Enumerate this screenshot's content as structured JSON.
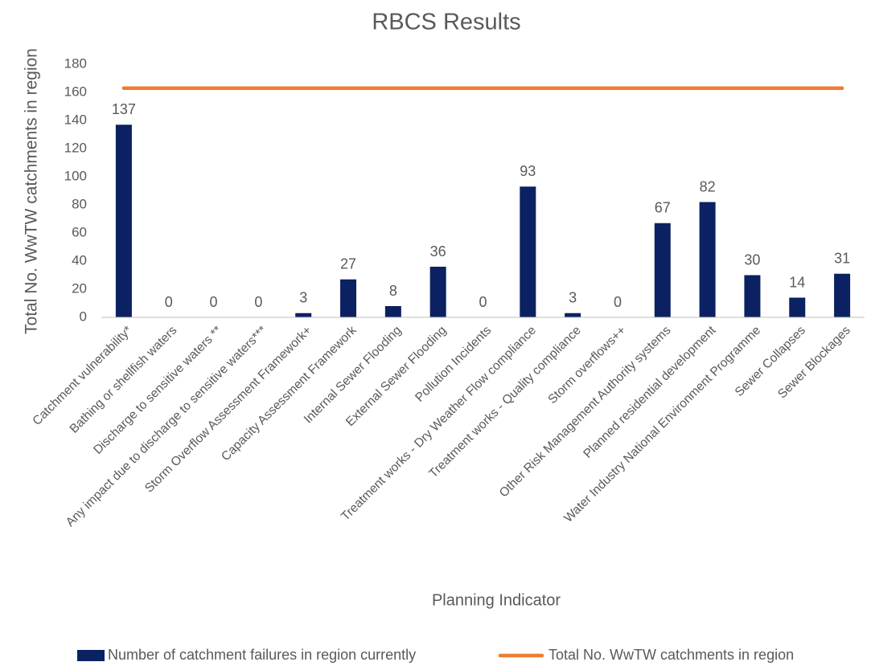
{
  "chart_data": {
    "type": "bar",
    "title": "RBCS Results",
    "x_label": "Planning Indicator",
    "y_label": "Total No. WwTW catchments in region",
    "categories": [
      "Catchment vulnerability*",
      "Bathing or shellfish waters",
      "Discharge to sensitive waters **",
      "Any impact due to discharge to sensitive waters***",
      "Storm Overflow Assessment Framework+",
      "Capacity Assessment Framework",
      "Internal Sewer Flooding",
      "External Sewer Flooding",
      "Pollution Incidents",
      "Treatment works - Dry Weather Flow compliance",
      "Treatment works - Quality compliance",
      "Storm overflows++",
      "Other Risk Management Authority systems",
      "Planned residential development",
      "Water Industry National Environment Programme",
      "Sewer Collapses",
      "Sewer Blockages"
    ],
    "series": [
      {
        "name": "Number of catchment failures in region currently",
        "type": "bar",
        "color": "#0b2161",
        "values": [
          137,
          0,
          0,
          0,
          3,
          27,
          8,
          36,
          0,
          93,
          3,
          0,
          67,
          82,
          30,
          14,
          31
        ]
      },
      {
        "name": "Total No. WwTW catchments in region",
        "type": "line",
        "color": "#ed7d31",
        "values": [
          163,
          163,
          163,
          163,
          163,
          163,
          163,
          163,
          163,
          163,
          163,
          163,
          163,
          163,
          163,
          163,
          163
        ]
      }
    ],
    "ylim": [
      0,
      180
    ],
    "yticks": [
      0,
      20,
      40,
      60,
      80,
      100,
      120,
      140,
      160,
      180
    ],
    "grid": false,
    "legend": "bottom"
  }
}
